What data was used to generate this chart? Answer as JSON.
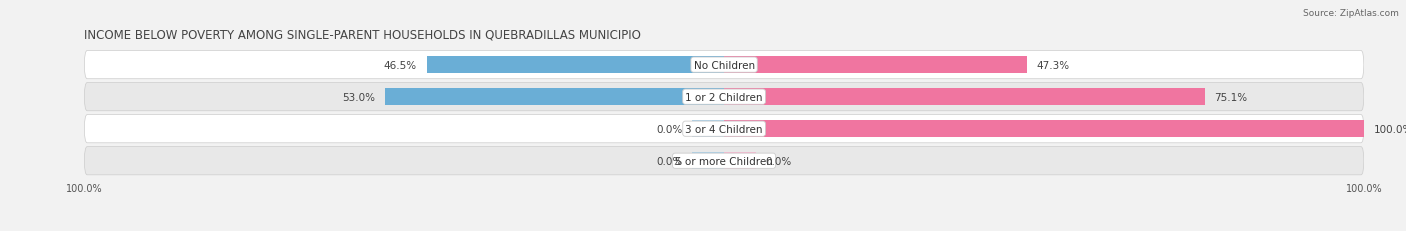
{
  "title": "INCOME BELOW POVERTY AMONG SINGLE-PARENT HOUSEHOLDS IN QUEBRADILLAS MUNICIPIO",
  "source": "Source: ZipAtlas.com",
  "categories": [
    "No Children",
    "1 or 2 Children",
    "3 or 4 Children",
    "5 or more Children"
  ],
  "single_father": [
    46.5,
    53.0,
    0.0,
    0.0
  ],
  "single_mother": [
    47.3,
    75.1,
    100.0,
    0.0
  ],
  "father_color": "#6aaed6",
  "mother_color": "#f075a0",
  "father_stub_color": "#a8cfe8",
  "mother_stub_color": "#f8b8cf",
  "bar_height": 0.52,
  "bg_color": "#f2f2f2",
  "row_bg_colors": [
    "#ffffff",
    "#e8e8e8",
    "#ffffff",
    "#e8e8e8"
  ],
  "title_fontsize": 8.5,
  "label_fontsize": 7.5,
  "value_fontsize": 7.5,
  "axis_label_fontsize": 7,
  "legend_fontsize": 8,
  "xlim": [
    -100,
    100
  ],
  "x_axis_labels": [
    "100.0%",
    "100.0%"
  ],
  "stub_size": 5.0
}
